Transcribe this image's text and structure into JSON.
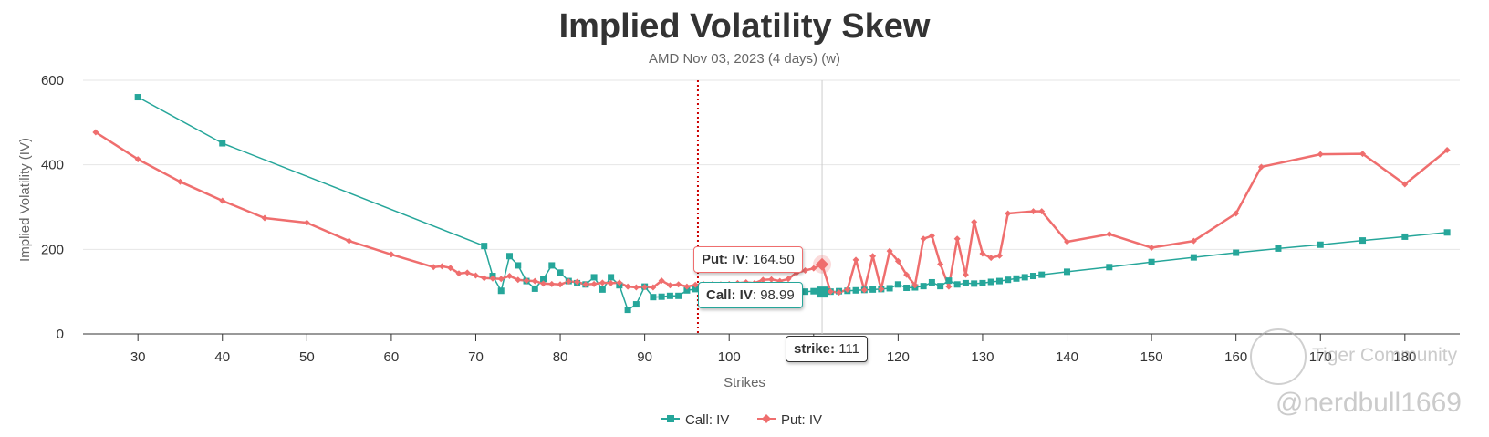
{
  "colors": {
    "call": "#26a69a",
    "put": "#ef6e6e",
    "marker": "#cc0000",
    "grid": "#e6e6e6",
    "axis": "#333333"
  },
  "chart_data": {
    "type": "line",
    "title": "Implied Volatility Skew",
    "subtitle": "AMD Nov 03, 2023 (4 days) (w)",
    "xlabel": "Strikes",
    "ylabel": "Implied Volatility (IV)",
    "xlim": [
      23.5,
      186.5
    ],
    "ylim": [
      0,
      600
    ],
    "xticks": [
      30,
      40,
      50,
      60,
      70,
      80,
      90,
      100,
      110,
      120,
      130,
      140,
      150,
      160,
      170,
      180
    ],
    "yticks": [
      0,
      200,
      400,
      600
    ],
    "price_marker_x": 96.3,
    "hover_strike": 111,
    "series": [
      {
        "name": "Call: IV",
        "symbol": "square",
        "points": [
          [
            30,
            560
          ],
          [
            40,
            451
          ],
          [
            71,
            208
          ],
          [
            72,
            137
          ],
          [
            73,
            102
          ],
          [
            74,
            184
          ],
          [
            75,
            162
          ],
          [
            76,
            125
          ],
          [
            77,
            107
          ],
          [
            78,
            130
          ],
          [
            79,
            162
          ],
          [
            80,
            145
          ],
          [
            81,
            125
          ],
          [
            82,
            120
          ],
          [
            83,
            117
          ],
          [
            84,
            134
          ],
          [
            85,
            105
          ],
          [
            86,
            134
          ],
          [
            87,
            115
          ],
          [
            88,
            57
          ],
          [
            89,
            70
          ],
          [
            90,
            112
          ],
          [
            91,
            87
          ],
          [
            92,
            88
          ],
          [
            93,
            90
          ],
          [
            94,
            90
          ],
          [
            95,
            103
          ],
          [
            96,
            106
          ],
          [
            97,
            108
          ],
          [
            98,
            109
          ],
          [
            99,
            108
          ],
          [
            100,
            110
          ],
          [
            101,
            104
          ],
          [
            102,
            105
          ],
          [
            103,
            106
          ],
          [
            104,
            99
          ],
          [
            105,
            98
          ],
          [
            106,
            97
          ],
          [
            107,
            100
          ],
          [
            108,
            99
          ],
          [
            109,
            100
          ],
          [
            110,
            101
          ],
          [
            111,
            98.99
          ],
          [
            112,
            100
          ],
          [
            113,
            101
          ],
          [
            114,
            102
          ],
          [
            115,
            103
          ],
          [
            116,
            104
          ],
          [
            117,
            105
          ],
          [
            118,
            106
          ],
          [
            119,
            108
          ],
          [
            120,
            117
          ],
          [
            121,
            109
          ],
          [
            122,
            110
          ],
          [
            123,
            113
          ],
          [
            124,
            122
          ],
          [
            125,
            113
          ],
          [
            126,
            126
          ],
          [
            127,
            117
          ],
          [
            128,
            120
          ],
          [
            129,
            119
          ],
          [
            130,
            120
          ],
          [
            131,
            123
          ],
          [
            132,
            125
          ],
          [
            133,
            128
          ],
          [
            134,
            131
          ],
          [
            135,
            134
          ],
          [
            136,
            137
          ],
          [
            137,
            140
          ],
          [
            140,
            147
          ],
          [
            145,
            158
          ],
          [
            150,
            170
          ],
          [
            155,
            181
          ],
          [
            160,
            192
          ],
          [
            165,
            202
          ],
          [
            170,
            211
          ],
          [
            175,
            221
          ],
          [
            180,
            230
          ],
          [
            185,
            240
          ]
        ]
      },
      {
        "name": "Put: IV",
        "symbol": "diamond",
        "points": [
          [
            25,
            477
          ],
          [
            30,
            413
          ],
          [
            35,
            360
          ],
          [
            40,
            315
          ],
          [
            45,
            274
          ],
          [
            50,
            263
          ],
          [
            55,
            220
          ],
          [
            60,
            188
          ],
          [
            65,
            158
          ],
          [
            66,
            160
          ],
          [
            67,
            156
          ],
          [
            68,
            143
          ],
          [
            69,
            145
          ],
          [
            70,
            138
          ],
          [
            71,
            132
          ],
          [
            72,
            131
          ],
          [
            73,
            130
          ],
          [
            74,
            137
          ],
          [
            75,
            128
          ],
          [
            76,
            126
          ],
          [
            77,
            125
          ],
          [
            78,
            119
          ],
          [
            79,
            118
          ],
          [
            80,
            117
          ],
          [
            81,
            124
          ],
          [
            82,
            123
          ],
          [
            83,
            117
          ],
          [
            84,
            118
          ],
          [
            85,
            121
          ],
          [
            86,
            120
          ],
          [
            87,
            121
          ],
          [
            88,
            112
          ],
          [
            89,
            110
          ],
          [
            90,
            111
          ],
          [
            91,
            110
          ],
          [
            92,
            126
          ],
          [
            93,
            115
          ],
          [
            94,
            117
          ],
          [
            95,
            112
          ],
          [
            96,
            116
          ],
          [
            97,
            117
          ],
          [
            98,
            117
          ],
          [
            99,
            117
          ],
          [
            100,
            118
          ],
          [
            101,
            120
          ],
          [
            102,
            122
          ],
          [
            103,
            120
          ],
          [
            104,
            128
          ],
          [
            105,
            129
          ],
          [
            106,
            125
          ],
          [
            107,
            130
          ],
          [
            108,
            145
          ],
          [
            109,
            150
          ],
          [
            110,
            155
          ],
          [
            111,
            164.5
          ],
          [
            112,
            100
          ],
          [
            113,
            98
          ],
          [
            114,
            105
          ],
          [
            115,
            175
          ],
          [
            116,
            104
          ],
          [
            117,
            184
          ],
          [
            118,
            106
          ],
          [
            119,
            196
          ],
          [
            120,
            172
          ],
          [
            121,
            140
          ],
          [
            122,
            115
          ],
          [
            123,
            225
          ],
          [
            124,
            232
          ],
          [
            125,
            165
          ],
          [
            126,
            112
          ],
          [
            127,
            225
          ],
          [
            128,
            140
          ],
          [
            129,
            265
          ],
          [
            130,
            190
          ],
          [
            131,
            180
          ],
          [
            132,
            185
          ],
          [
            133,
            285
          ],
          [
            136,
            290
          ],
          [
            137,
            290
          ],
          [
            140,
            218
          ],
          [
            145,
            236
          ],
          [
            150,
            204
          ],
          [
            155,
            220
          ],
          [
            160,
            285
          ],
          [
            163,
            395
          ],
          [
            170,
            425
          ],
          [
            175,
            426
          ],
          [
            180,
            354
          ],
          [
            185,
            435
          ]
        ]
      }
    ]
  },
  "tooltips": {
    "put_label": "Put: IV",
    "put_value": ": 164.50",
    "call_label": "Call: IV",
    "call_value": ": 98.99",
    "strike_label": "strike:",
    "strike_value": " 111"
  },
  "watermark": {
    "brand": "Tiger Community",
    "handle": "@nerdbull1669"
  }
}
